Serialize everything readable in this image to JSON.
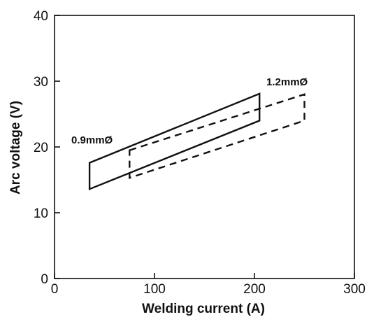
{
  "chart_data": {
    "type": "area",
    "title": "",
    "xlabel": "Welding current (A)",
    "ylabel": "Arc voltage (V)",
    "xlim": [
      0,
      300
    ],
    "ylim": [
      0,
      40
    ],
    "xticks": [
      0,
      100,
      200,
      300
    ],
    "yticks": [
      0,
      10,
      20,
      30,
      40
    ],
    "grid": false,
    "series": [
      {
        "name": "0.9mmØ",
        "line_style": "solid",
        "polygon": [
          [
            35,
            17.6
          ],
          [
            205,
            28.1
          ],
          [
            205,
            24.0
          ],
          [
            35,
            13.6
          ]
        ]
      },
      {
        "name": "1.2mmØ",
        "line_style": "dashed",
        "polygon": [
          [
            75,
            19.5
          ],
          [
            250,
            28.0
          ],
          [
            250,
            24.0
          ],
          [
            75,
            15.3
          ]
        ]
      }
    ]
  }
}
